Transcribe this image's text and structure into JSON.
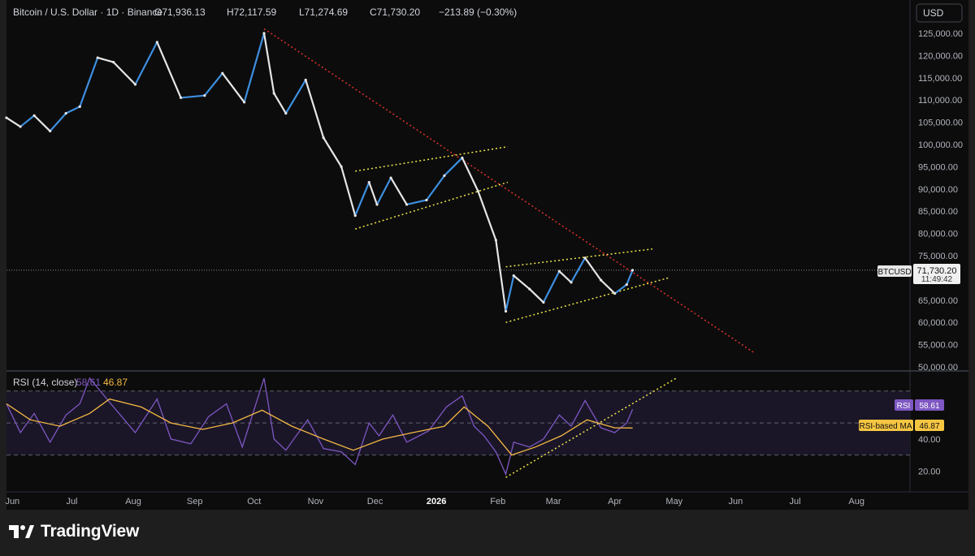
{
  "header": {
    "symbol_title": "Bitcoin / U.S. Dollar · 1D · Binance",
    "open": "O71,936.13",
    "high": "H72,117.59",
    "low": "L71,274.69",
    "close": "C71,730.20",
    "change": "−213.89 (−0.30%)",
    "currency_button": "USD"
  },
  "price_tag": {
    "symbol": "BTCUSD",
    "price": "71,730.20",
    "countdown": "11:49:42"
  },
  "rsi_panel": {
    "title": "RSI (14, close)",
    "rsi_value": "58.61",
    "ma_value": "46.87",
    "rsi_label": "RSI",
    "ma_label": "RSI-based MA"
  },
  "brand": {
    "name": "TradingView"
  },
  "colors": {
    "background": "#0c0c0c",
    "frame": "#1e1e1e",
    "candle_up": "#3d8fe0",
    "candle_down": "#e6e6e6",
    "downtrend_line": "#e0312b",
    "channel_lines": "#f2e64a",
    "rsi_line": "#7e57c2",
    "rsi_ma_line": "#f5b942",
    "rsi_band": "#1a1628"
  },
  "chart_data": {
    "type": "candlestick",
    "timeframe": "1D",
    "x_tick_labels": [
      "Jun",
      "Jul",
      "Aug",
      "Sep",
      "Oct",
      "Nov",
      "Dec",
      "2026",
      "Feb",
      "Mar",
      "Apr",
      "May",
      "Jun",
      "Jul",
      "Aug"
    ],
    "x_tick_dates": [
      "2025-06-01",
      "2025-07-01",
      "2025-08-01",
      "2025-09-01",
      "2025-10-01",
      "2025-11-01",
      "2025-12-01",
      "2026-01-01",
      "2026-02-01",
      "2026-03-01",
      "2026-04-01",
      "2026-05-01",
      "2026-06-01",
      "2026-07-01",
      "2026-08-01"
    ],
    "x_range": [
      "2025-05-29",
      "2026-08-28"
    ],
    "y_range": [
      50000,
      127000
    ],
    "y_tick_labels": [
      "125,000.00",
      "120,000.00",
      "115,000.00",
      "110,000.00",
      "105,000.00",
      "100,000.00",
      "95,000.00",
      "90,000.00",
      "85,000.00",
      "80,000.00",
      "75,000.00",
      "70,000.00",
      "65,000.00",
      "60,000.00",
      "55,000.00",
      "50,000.00"
    ],
    "y_tick_values": [
      125000,
      120000,
      115000,
      110000,
      105000,
      100000,
      95000,
      90000,
      85000,
      80000,
      75000,
      70000,
      65000,
      60000,
      55000,
      50000
    ],
    "last_price": 71730.2,
    "close_path": [
      {
        "x": "2025-05-29",
        "y": 106000
      },
      {
        "x": "2025-06-05",
        "y": 104000
      },
      {
        "x": "2025-06-12",
        "y": 106500
      },
      {
        "x": "2025-06-20",
        "y": 103000
      },
      {
        "x": "2025-06-28",
        "y": 107000
      },
      {
        "x": "2025-07-05",
        "y": 108500
      },
      {
        "x": "2025-07-14",
        "y": 119500
      },
      {
        "x": "2025-07-22",
        "y": 118500
      },
      {
        "x": "2025-08-02",
        "y": 113500
      },
      {
        "x": "2025-08-13",
        "y": 123000
      },
      {
        "x": "2025-08-25",
        "y": 110500
      },
      {
        "x": "2025-09-06",
        "y": 111000
      },
      {
        "x": "2025-09-15",
        "y": 116000
      },
      {
        "x": "2025-09-26",
        "y": 109500
      },
      {
        "x": "2025-10-06",
        "y": 125000
      },
      {
        "x": "2025-10-11",
        "y": 111500
      },
      {
        "x": "2025-10-17",
        "y": 107000
      },
      {
        "x": "2025-10-27",
        "y": 114500
      },
      {
        "x": "2025-11-05",
        "y": 101500
      },
      {
        "x": "2025-11-14",
        "y": 95000
      },
      {
        "x": "2025-11-21",
        "y": 84000
      },
      {
        "x": "2025-11-28",
        "y": 91500
      },
      {
        "x": "2025-12-02",
        "y": 86500
      },
      {
        "x": "2025-12-09",
        "y": 92500
      },
      {
        "x": "2025-12-17",
        "y": 86500
      },
      {
        "x": "2025-12-27",
        "y": 87500
      },
      {
        "x": "2026-01-05",
        "y": 93000
      },
      {
        "x": "2026-01-14",
        "y": 97000
      },
      {
        "x": "2026-01-22",
        "y": 89500
      },
      {
        "x": "2026-01-31",
        "y": 78500
      },
      {
        "x": "2026-02-05",
        "y": 62500
      },
      {
        "x": "2026-02-09",
        "y": 70500
      },
      {
        "x": "2026-02-17",
        "y": 67500
      },
      {
        "x": "2026-02-24",
        "y": 64500
      },
      {
        "x": "2026-03-04",
        "y": 71500
      },
      {
        "x": "2026-03-10",
        "y": 69000
      },
      {
        "x": "2026-03-17",
        "y": 74500
      },
      {
        "x": "2026-03-25",
        "y": 69500
      },
      {
        "x": "2026-04-01",
        "y": 66500
      },
      {
        "x": "2026-04-07",
        "y": 68500
      },
      {
        "x": "2026-04-10",
        "y": 71730
      }
    ],
    "trendlines": {
      "downtrend": {
        "from": {
          "x": "2025-10-06",
          "y": 126000
        },
        "to": {
          "x": "2026-06-11",
          "y": 53000
        }
      },
      "channel_1_upper": {
        "from": {
          "x": "2025-11-21",
          "y": 94000
        },
        "to": {
          "x": "2026-02-06",
          "y": 99500
        }
      },
      "channel_1_lower": {
        "from": {
          "x": "2025-11-21",
          "y": 81000
        },
        "to": {
          "x": "2026-02-06",
          "y": 91500
        }
      },
      "channel_2_upper": {
        "from": {
          "x": "2026-02-05",
          "y": 72500
        },
        "to": {
          "x": "2026-04-20",
          "y": 76500
        }
      },
      "channel_2_lower": {
        "from": {
          "x": "2026-02-05",
          "y": 60000
        },
        "to": {
          "x": "2026-04-28",
          "y": 70000
        }
      }
    },
    "rsi": {
      "y_range": [
        10,
        80
      ],
      "y_tick_labels": [
        "40.00",
        "20.00"
      ],
      "y_tick_values": [
        40,
        20
      ],
      "band_levels": [
        30,
        50,
        70
      ],
      "last_rsi": 58.61,
      "last_ma": 46.87,
      "rsi_path": [
        {
          "x": "2025-05-29",
          "y": 62
        },
        {
          "x": "2025-06-05",
          "y": 44
        },
        {
          "x": "2025-06-12",
          "y": 56
        },
        {
          "x": "2025-06-20",
          "y": 38
        },
        {
          "x": "2025-06-28",
          "y": 55
        },
        {
          "x": "2025-07-05",
          "y": 62
        },
        {
          "x": "2025-07-10",
          "y": 78
        },
        {
          "x": "2025-07-20",
          "y": 63
        },
        {
          "x": "2025-08-02",
          "y": 44
        },
        {
          "x": "2025-08-13",
          "y": 65
        },
        {
          "x": "2025-08-20",
          "y": 40
        },
        {
          "x": "2025-08-30",
          "y": 37
        },
        {
          "x": "2025-09-08",
          "y": 54
        },
        {
          "x": "2025-09-17",
          "y": 62
        },
        {
          "x": "2025-09-25",
          "y": 35
        },
        {
          "x": "2025-10-06",
          "y": 78
        },
        {
          "x": "2025-10-11",
          "y": 40
        },
        {
          "x": "2025-10-17",
          "y": 33
        },
        {
          "x": "2025-10-28",
          "y": 52
        },
        {
          "x": "2025-11-05",
          "y": 34
        },
        {
          "x": "2025-11-14",
          "y": 32
        },
        {
          "x": "2025-11-21",
          "y": 24
        },
        {
          "x": "2025-11-28",
          "y": 50
        },
        {
          "x": "2025-12-03",
          "y": 42
        },
        {
          "x": "2025-12-10",
          "y": 55
        },
        {
          "x": "2025-12-17",
          "y": 38
        },
        {
          "x": "2025-12-28",
          "y": 45
        },
        {
          "x": "2026-01-06",
          "y": 60
        },
        {
          "x": "2026-01-14",
          "y": 67
        },
        {
          "x": "2026-01-20",
          "y": 48
        },
        {
          "x": "2026-01-25",
          "y": 42
        },
        {
          "x": "2026-01-31",
          "y": 32
        },
        {
          "x": "2026-02-05",
          "y": 18
        },
        {
          "x": "2026-02-09",
          "y": 38
        },
        {
          "x": "2026-02-17",
          "y": 35
        },
        {
          "x": "2026-02-24",
          "y": 40
        },
        {
          "x": "2026-03-04",
          "y": 55
        },
        {
          "x": "2026-03-10",
          "y": 48
        },
        {
          "x": "2026-03-17",
          "y": 64
        },
        {
          "x": "2026-03-25",
          "y": 47
        },
        {
          "x": "2026-04-01",
          "y": 44
        },
        {
          "x": "2026-04-07",
          "y": 50
        },
        {
          "x": "2026-04-10",
          "y": 58.61
        }
      ],
      "ma_path": [
        {
          "x": "2025-05-29",
          "y": 62
        },
        {
          "x": "2025-06-10",
          "y": 52
        },
        {
          "x": "2025-06-25",
          "y": 48
        },
        {
          "x": "2025-07-10",
          "y": 56
        },
        {
          "x": "2025-07-20",
          "y": 65
        },
        {
          "x": "2025-08-05",
          "y": 60
        },
        {
          "x": "2025-08-20",
          "y": 50
        },
        {
          "x": "2025-09-05",
          "y": 46
        },
        {
          "x": "2025-09-20",
          "y": 50
        },
        {
          "x": "2025-10-05",
          "y": 58
        },
        {
          "x": "2025-10-20",
          "y": 48
        },
        {
          "x": "2025-11-05",
          "y": 40
        },
        {
          "x": "2025-11-20",
          "y": 33
        },
        {
          "x": "2025-12-05",
          "y": 40
        },
        {
          "x": "2025-12-20",
          "y": 44
        },
        {
          "x": "2026-01-05",
          "y": 48
        },
        {
          "x": "2026-01-15",
          "y": 60
        },
        {
          "x": "2026-01-27",
          "y": 48
        },
        {
          "x": "2026-02-08",
          "y": 30
        },
        {
          "x": "2026-02-20",
          "y": 35
        },
        {
          "x": "2026-03-05",
          "y": 42
        },
        {
          "x": "2026-03-18",
          "y": 52
        },
        {
          "x": "2026-04-01",
          "y": 47
        },
        {
          "x": "2026-04-10",
          "y": 46.87
        }
      ],
      "trendline": {
        "from": {
          "x": "2026-02-05",
          "y": 16
        },
        "to": {
          "x": "2026-05-02",
          "y": 78
        }
      }
    }
  }
}
